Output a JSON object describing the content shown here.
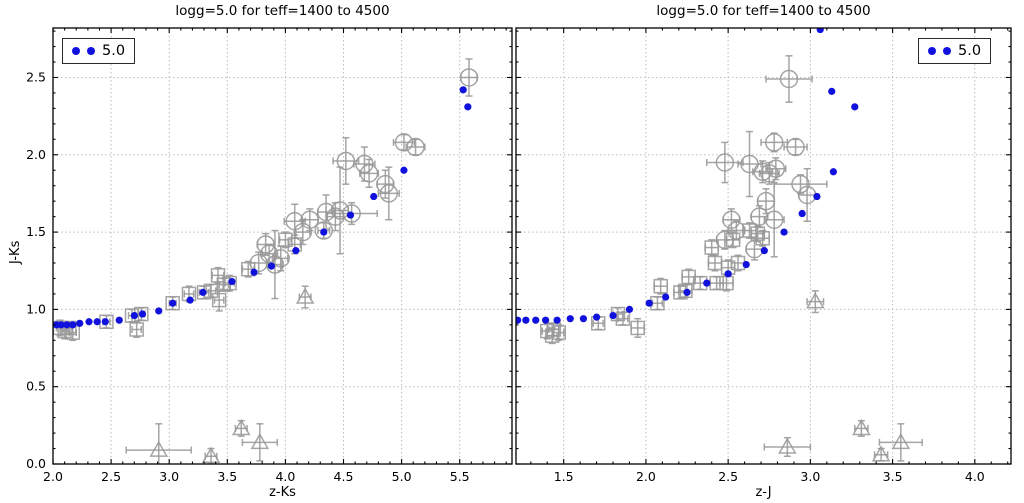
{
  "figure": {
    "ylabel": "J-Ks",
    "colors": {
      "model_blue": "#1111dd",
      "data_gray": "#999999",
      "grid_gray": "#bdbdbd",
      "axis_black": "#000000"
    }
  },
  "chart_data": [
    {
      "type": "scatter",
      "title": "logg=5.0 for teff=1400 to 4500",
      "xlabel": "z-Ks",
      "ylabel": "J-Ks",
      "xlim": [
        2.0,
        5.95
      ],
      "ylim": [
        0.0,
        2.82
      ],
      "xticks": [
        2.0,
        2.5,
        3.0,
        3.5,
        4.0,
        4.5,
        5.0,
        5.5
      ],
      "yticks": [
        0.0,
        0.5,
        1.0,
        1.5,
        2.0,
        2.5
      ],
      "grid": true,
      "legend": {
        "label": "5.0",
        "position": "upper-left"
      },
      "series": [
        {
          "name": "observed-circle",
          "marker": "circle",
          "points": [
            [
              3.77,
              1.3,
              0.07,
              0.07
            ],
            [
              3.83,
              1.42,
              0.07,
              0.07
            ],
            [
              3.86,
              1.36,
              0.06,
              0.06
            ],
            [
              3.91,
              1.29,
              0.06,
              0.22
            ],
            [
              3.96,
              1.33,
              0.06,
              0.08
            ],
            [
              4.08,
              1.57,
              0.09,
              0.11
            ],
            [
              4.15,
              1.5,
              0.06,
              0.08
            ],
            [
              4.21,
              1.58,
              0.07,
              0.07
            ],
            [
              4.33,
              1.51,
              0.05,
              0.05
            ],
            [
              4.35,
              1.63,
              0.07,
              0.11
            ],
            [
              4.43,
              1.6,
              0.07,
              0.09
            ],
            [
              4.47,
              1.64,
              0.07,
              0.28
            ],
            [
              4.57,
              1.62,
              0.22,
              0.07
            ],
            [
              4.52,
              1.96,
              0.11,
              0.15
            ],
            [
              4.68,
              1.94,
              0.09,
              0.11
            ],
            [
              4.72,
              1.88,
              0.08,
              0.09
            ],
            [
              4.86,
              1.81,
              0.07,
              0.09
            ],
            [
              4.89,
              1.75,
              0.09,
              0.17
            ],
            [
              5.02,
              2.08,
              0.09,
              0.05
            ],
            [
              5.12,
              2.05,
              0.08,
              0.05
            ],
            [
              5.58,
              2.5,
              0.07,
              0.12
            ]
          ]
        },
        {
          "name": "observed-square",
          "marker": "square",
          "points": [
            [
              2.06,
              0.88,
              0.03,
              0.05
            ],
            [
              2.1,
              0.86,
              0.03,
              0.05
            ],
            [
              2.14,
              0.88,
              0.03,
              0.04
            ],
            [
              2.17,
              0.85,
              0.03,
              0.05
            ],
            [
              2.46,
              0.92,
              0.03,
              0.04
            ],
            [
              2.68,
              0.96,
              0.03,
              0.04
            ],
            [
              2.72,
              0.87,
              0.04,
              0.05
            ],
            [
              2.76,
              0.97,
              0.03,
              0.04
            ],
            [
              3.03,
              1.04,
              0.03,
              0.04
            ],
            [
              3.17,
              1.1,
              0.04,
              0.05
            ],
            [
              3.3,
              1.11,
              0.04,
              0.04
            ],
            [
              3.36,
              1.12,
              0.04,
              0.04
            ],
            [
              3.43,
              1.06,
              0.04,
              0.07
            ],
            [
              3.47,
              1.16,
              0.04,
              0.04
            ],
            [
              3.52,
              1.17,
              0.04,
              0.05
            ],
            [
              3.42,
              1.22,
              0.05,
              0.05
            ],
            [
              3.68,
              1.26,
              0.05,
              0.05
            ],
            [
              4.0,
              1.45,
              0.05,
              0.05
            ],
            [
              4.08,
              1.42,
              0.05,
              0.06
            ]
          ]
        },
        {
          "name": "observed-triangle",
          "marker": "triangle",
          "points": [
            [
              2.91,
              0.09,
              0.28,
              0.17
            ],
            [
              3.36,
              0.05,
              0.05,
              0.05
            ],
            [
              3.62,
              0.23,
              0.05,
              0.05
            ],
            [
              3.78,
              0.14,
              0.15,
              0.12
            ],
            [
              4.17,
              1.08,
              0.05,
              0.07
            ]
          ]
        },
        {
          "name": "model-logg-5.0",
          "marker": "dot",
          "points": [
            [
              2.03,
              0.9
            ],
            [
              2.07,
              0.9
            ],
            [
              2.12,
              0.9
            ],
            [
              2.17,
              0.9
            ],
            [
              2.23,
              0.91
            ],
            [
              2.31,
              0.92
            ],
            [
              2.38,
              0.92
            ],
            [
              2.45,
              0.92
            ],
            [
              2.57,
              0.93
            ],
            [
              2.7,
              0.96
            ],
            [
              2.77,
              0.97
            ],
            [
              2.91,
              0.99
            ],
            [
              3.03,
              1.04
            ],
            [
              3.18,
              1.06
            ],
            [
              3.29,
              1.11
            ],
            [
              3.54,
              1.18
            ],
            [
              3.73,
              1.24
            ],
            [
              3.88,
              1.28
            ],
            [
              4.09,
              1.38
            ],
            [
              4.33,
              1.5
            ],
            [
              4.56,
              1.61
            ],
            [
              4.76,
              1.73
            ],
            [
              5.02,
              1.9
            ],
            [
              5.53,
              2.42
            ],
            [
              5.57,
              2.31
            ]
          ]
        }
      ]
    },
    {
      "type": "scatter",
      "title": "logg=5.0 for teff=1400 to 4500",
      "xlabel": "z-J",
      "ylabel": "",
      "xlim": [
        1.21,
        4.22
      ],
      "ylim": [
        0.0,
        2.82
      ],
      "xticks": [
        1.5,
        2.0,
        2.5,
        3.0,
        3.5,
        4.0
      ],
      "yticks": [
        0.0,
        0.5,
        1.0,
        1.5,
        2.0,
        2.5
      ],
      "grid": true,
      "legend": {
        "label": "5.0",
        "position": "upper-right"
      },
      "series": [
        {
          "name": "observed-circle",
          "marker": "circle",
          "points": [
            [
              2.48,
              1.95,
              0.11,
              0.13
            ],
            [
              2.63,
              1.94,
              0.07,
              0.21
            ],
            [
              2.71,
              1.89,
              0.06,
              0.07
            ],
            [
              2.75,
              1.88,
              0.06,
              0.07
            ],
            [
              2.79,
              1.91,
              0.06,
              0.07
            ],
            [
              2.94,
              1.81,
              0.16,
              0.06
            ],
            [
              2.98,
              1.74,
              0.05,
              0.17
            ],
            [
              2.73,
              1.7,
              0.05,
              0.08
            ],
            [
              2.69,
              1.6,
              0.05,
              0.07
            ],
            [
              2.78,
              1.58,
              0.06,
              0.24
            ],
            [
              2.52,
              1.58,
              0.05,
              0.07
            ],
            [
              2.55,
              1.51,
              0.05,
              0.06
            ],
            [
              2.48,
              1.45,
              0.05,
              0.06
            ],
            [
              2.66,
              1.39,
              0.05,
              0.07
            ],
            [
              2.87,
              2.49,
              0.14,
              0.15
            ],
            [
              2.78,
              2.08,
              0.08,
              0.06
            ],
            [
              2.91,
              2.05,
              0.07,
              0.05
            ]
          ]
        },
        {
          "name": "observed-square",
          "marker": "square",
          "points": [
            [
              1.4,
              0.86,
              0.03,
              0.05
            ],
            [
              1.43,
              0.83,
              0.03,
              0.05
            ],
            [
              1.44,
              0.87,
              0.03,
              0.04
            ],
            [
              1.47,
              0.85,
              0.03,
              0.05
            ],
            [
              1.71,
              0.91,
              0.03,
              0.04
            ],
            [
              1.83,
              0.97,
              0.03,
              0.04
            ],
            [
              1.86,
              0.94,
              0.03,
              0.04
            ],
            [
              1.95,
              0.88,
              0.04,
              0.06
            ],
            [
              2.07,
              1.04,
              0.03,
              0.04
            ],
            [
              2.09,
              1.15,
              0.04,
              0.05
            ],
            [
              2.21,
              1.11,
              0.04,
              0.04
            ],
            [
              2.24,
              1.12,
              0.04,
              0.04
            ],
            [
              2.26,
              1.21,
              0.04,
              0.05
            ],
            [
              2.33,
              1.17,
              0.04,
              0.04
            ],
            [
              2.43,
              1.17,
              0.04,
              0.04
            ],
            [
              2.49,
              1.17,
              0.04,
              0.05
            ],
            [
              2.42,
              1.3,
              0.04,
              0.05
            ],
            [
              2.5,
              1.27,
              0.04,
              0.05
            ],
            [
              2.56,
              1.3,
              0.04,
              0.05
            ],
            [
              2.4,
              1.4,
              0.04,
              0.05
            ],
            [
              2.53,
              1.45,
              0.04,
              0.05
            ],
            [
              2.63,
              1.51,
              0.04,
              0.05
            ],
            [
              2.68,
              1.49,
              0.04,
              0.05
            ],
            [
              2.71,
              1.46,
              0.04,
              0.05
            ]
          ]
        },
        {
          "name": "observed-triangle",
          "marker": "triangle",
          "points": [
            [
              2.86,
              0.11,
              0.14,
              0.06
            ],
            [
              3.31,
              0.23,
              0.04,
              0.05
            ],
            [
              3.43,
              0.06,
              0.04,
              0.04
            ],
            [
              3.55,
              0.14,
              0.13,
              0.12
            ],
            [
              3.03,
              1.05,
              0.05,
              0.07
            ]
          ]
        },
        {
          "name": "model-logg-5.0",
          "marker": "dot",
          "points": [
            [
              1.22,
              0.93
            ],
            [
              1.27,
              0.93
            ],
            [
              1.33,
              0.93
            ],
            [
              1.39,
              0.93
            ],
            [
              1.46,
              0.93
            ],
            [
              1.54,
              0.94
            ],
            [
              1.62,
              0.94
            ],
            [
              1.7,
              0.95
            ],
            [
              1.8,
              0.96
            ],
            [
              1.9,
              1.0
            ],
            [
              2.02,
              1.04
            ],
            [
              2.12,
              1.08
            ],
            [
              2.25,
              1.11
            ],
            [
              2.37,
              1.17
            ],
            [
              2.5,
              1.23
            ],
            [
              2.61,
              1.29
            ],
            [
              2.72,
              1.38
            ],
            [
              2.84,
              1.5
            ],
            [
              2.95,
              1.62
            ],
            [
              3.04,
              1.73
            ],
            [
              3.14,
              1.89
            ],
            [
              3.13,
              2.41
            ],
            [
              3.27,
              2.31
            ],
            [
              3.06,
              2.81
            ]
          ]
        }
      ]
    }
  ]
}
